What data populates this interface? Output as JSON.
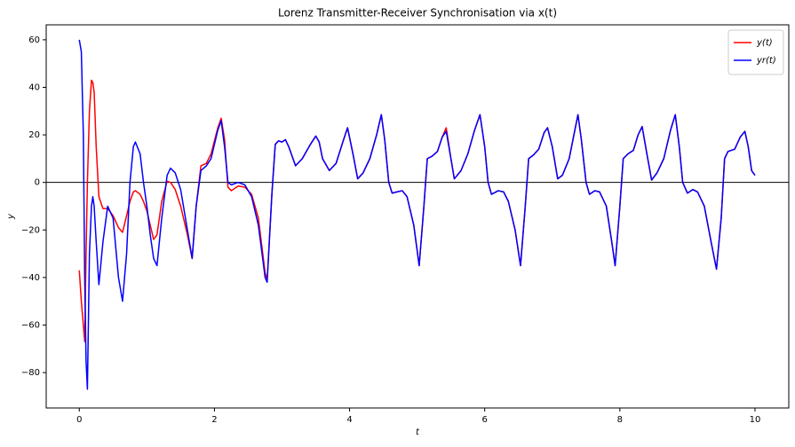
{
  "chart_data": {
    "type": "line",
    "title": "Lorenz Transmitter-Receiver Synchronisation via x(t)",
    "x_label": "t",
    "y_label": "y",
    "x": [
      0,
      0.03,
      0.06,
      0.08,
      0.1,
      0.12,
      0.15,
      0.18,
      0.2,
      0.22,
      0.25,
      0.29,
      0.35,
      0.42,
      0.5,
      0.58,
      0.64,
      0.7,
      0.75,
      0.8,
      0.83,
      0.9,
      0.95,
      1.0,
      1.05,
      1.1,
      1.15,
      1.22,
      1.3,
      1.35,
      1.42,
      1.5,
      1.6,
      1.67,
      1.73,
      1.8,
      1.88,
      1.95,
      2.05,
      2.1,
      2.15,
      2.2,
      2.25,
      2.35,
      2.45,
      2.55,
      2.65,
      2.75,
      2.78,
      2.85,
      2.9,
      2.95,
      3.0,
      3.05,
      3.1,
      3.2,
      3.3,
      3.42,
      3.5,
      3.55,
      3.6,
      3.7,
      3.8,
      3.9,
      3.97,
      4.05,
      4.12,
      4.2,
      4.3,
      4.4,
      4.47,
      4.52,
      4.58,
      4.63,
      4.7,
      4.78,
      4.85,
      4.95,
      5.03,
      5.1,
      5.15,
      5.22,
      5.3,
      5.37,
      5.43,
      5.5,
      5.55,
      5.65,
      5.75,
      5.85,
      5.93,
      6.0,
      6.05,
      6.1,
      6.2,
      6.28,
      6.35,
      6.45,
      6.53,
      6.6,
      6.65,
      6.72,
      6.8,
      6.88,
      6.93,
      7.0,
      7.08,
      7.15,
      7.25,
      7.32,
      7.38,
      7.43,
      7.5,
      7.55,
      7.63,
      7.7,
      7.8,
      7.88,
      7.93,
      8.0,
      8.05,
      8.12,
      8.2,
      8.27,
      8.33,
      8.4,
      8.47,
      8.55,
      8.65,
      8.75,
      8.82,
      8.88,
      8.93,
      9.0,
      9.08,
      9.15,
      9.25,
      9.35,
      9.43,
      9.5,
      9.55,
      9.6,
      9.7,
      9.78,
      9.85,
      9.9,
      9.95,
      10.0
    ],
    "series": [
      {
        "name": "y(t)",
        "color": "#ff0000",
        "values": [
          -37,
          -50,
          -60,
          -67,
          -30,
          0,
          30,
          43,
          42,
          38,
          15,
          -6,
          -11,
          -11,
          -14,
          -19,
          -21,
          -14,
          -8,
          -4,
          -3.5,
          -5,
          -8,
          -12,
          -18,
          -24,
          -22,
          -8,
          0.5,
          0,
          -3,
          -10,
          -22,
          -32,
          -10,
          7,
          8,
          12,
          23,
          27,
          18,
          -2,
          -3.5,
          -1.5,
          -2,
          -5,
          -15,
          -38,
          -41,
          -5,
          16,
          17.5,
          17,
          18,
          15,
          7,
          10,
          16,
          19.5,
          17,
          10,
          5,
          8,
          17,
          23,
          12,
          1.5,
          4,
          10,
          20,
          28.5,
          18,
          0,
          -4.5,
          -4,
          -3.5,
          -6,
          -18,
          -35,
          -10,
          10,
          11,
          13,
          19,
          23,
          10,
          1.5,
          5,
          12,
          22,
          28.5,
          15,
          0,
          -5,
          -3.5,
          -4,
          -8,
          -20,
          -35,
          -10,
          10,
          11.5,
          14,
          21,
          23,
          15,
          1.5,
          3,
          10,
          20,
          28.5,
          18,
          0,
          -5,
          -3.5,
          -4,
          -10,
          -25,
          -35,
          -10,
          10,
          12,
          13.5,
          20,
          23.5,
          12,
          1,
          4,
          10,
          22,
          28.5,
          15,
          0,
          -4.5,
          -3,
          -4,
          -10,
          -25,
          -36.5,
          -15,
          10,
          13,
          14,
          19,
          21.5,
          15,
          5,
          3
        ]
      },
      {
        "name": "yr(t)",
        "color": "#0000ff",
        "values": [
          60,
          55,
          20,
          -40,
          -75,
          -87,
          -30,
          -10,
          -6,
          -10,
          -25,
          -43,
          -25,
          -10,
          -15,
          -40,
          -50,
          -30,
          0,
          15,
          17,
          12,
          0,
          -10,
          -22,
          -32,
          -35,
          -15,
          3,
          6,
          4,
          -3,
          -20,
          -32,
          -10,
          5,
          7,
          10,
          22,
          26,
          15,
          0,
          -1,
          0,
          -1,
          -6,
          -18,
          -40,
          -42,
          -5,
          16,
          17.5,
          17,
          18,
          15,
          7,
          10,
          16,
          19.5,
          17,
          10,
          5,
          8,
          17,
          23,
          12,
          1.5,
          4,
          10,
          20,
          28.5,
          18,
          0,
          -4.5,
          -4,
          -3.5,
          -6,
          -18,
          -35,
          -10,
          10,
          11,
          13,
          19,
          21.5,
          10,
          1.5,
          5,
          12,
          22,
          28.5,
          15,
          0,
          -5,
          -3.5,
          -4,
          -8,
          -20,
          -35,
          -10,
          10,
          11.5,
          14,
          21,
          23,
          15,
          1.5,
          3,
          10,
          20,
          28.5,
          18,
          0,
          -5,
          -3.5,
          -4,
          -10,
          -25,
          -35,
          -10,
          10,
          12,
          13.5,
          20,
          23.5,
          12,
          1,
          4,
          10,
          22,
          28.5,
          15,
          0,
          -4.5,
          -3,
          -4,
          -10,
          -25,
          -36.5,
          -15,
          10,
          13,
          14,
          19,
          21.5,
          15,
          5,
          3
        ]
      }
    ],
    "xlim": [
      -0.49,
      10.5
    ],
    "ylim": [
      -94.9,
      66.3
    ],
    "xticks": [
      0,
      2,
      4,
      6,
      8,
      10
    ],
    "yticks": [
      {
        "value": -80,
        "label": "−80"
      },
      {
        "value": -60,
        "label": "−60"
      },
      {
        "value": -40,
        "label": "−40"
      },
      {
        "value": -20,
        "label": "−20"
      },
      0,
      20,
      40,
      60
    ],
    "hline": 0,
    "legend": "upper right"
  }
}
